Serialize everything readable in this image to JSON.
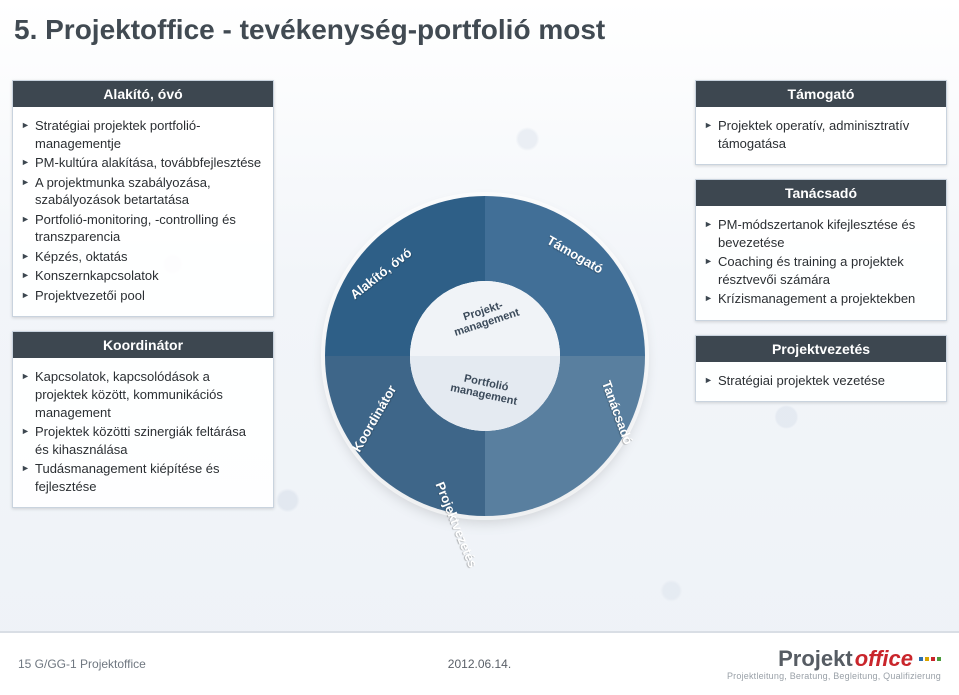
{
  "title": "5. Projektoffice - tevékenység-portfolió most",
  "colors": {
    "header_bg": "#3d4750",
    "header_text": "#ffffff",
    "box_border": "#c9d3de",
    "text": "#2b2f33",
    "puzzle_tl": "#2e5f87",
    "puzzle_tr": "#416f97",
    "puzzle_br": "#597f9f",
    "puzzle_bl": "#3e6689",
    "core_top": "#f0f3f7",
    "core_bot": "#e4eaf1",
    "logo_accent": "#c9252b"
  },
  "left": {
    "box1": {
      "title": "Alakító, óvó",
      "items": [
        "Stratégiai projektek portfolió-managementje",
        "PM-kultúra alakítása, továbbfejlesztése",
        "A projektmunka szabályozása, szabályozások betartatása",
        "Portfolió-monitoring, -controlling és transzparencia",
        "Képzés, oktatás",
        "Konszernkapcsolatok",
        "Projektvezetői pool"
      ]
    },
    "box2": {
      "title": "Koordinátor",
      "items": [
        "Kapcsolatok, kapcsolódások a projektek között, kommunikációs management",
        "Projektek közötti szinergiák feltárása és kihasználása",
        "Tudásmanagement kiépítése és fejlesztése"
      ]
    }
  },
  "right": {
    "box1": {
      "title": "Támogató",
      "items": [
        "Projektek operatív, adminisztratív támogatása"
      ]
    },
    "box2": {
      "title": "Tanácsadó",
      "items": [
        "PM-módszertanok kifejlesztése és bevezetése",
        "Coaching és training a projektek résztvevői számára",
        "Krízismanagement a projektekben"
      ]
    },
    "box3": {
      "title": "Projektvezetés",
      "items": [
        "Stratégiai projektek vezetése"
      ]
    }
  },
  "diagram": {
    "outer": {
      "tl": "Alakító, óvó",
      "tr": "Támogató",
      "br": "Tanácsadó",
      "bl": "Koordinátor",
      "bc": "Projektvezetés"
    },
    "inner": {
      "top": "Projekt-management",
      "bot": "Portfolió management"
    }
  },
  "footer": {
    "left": "15   G/GG-1 Projektoffice",
    "date": "2012.06.14.",
    "logo_main": "Projekt",
    "logo_accent": "office",
    "logo_tag": "Projektleitung, Beratung, Begleitung, Qualifizierung"
  }
}
